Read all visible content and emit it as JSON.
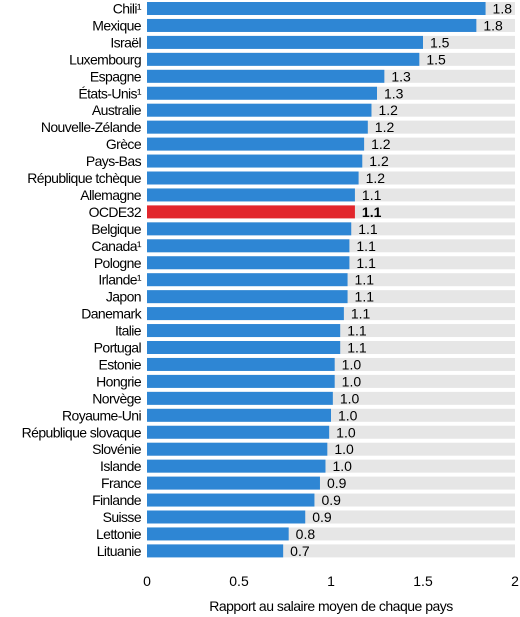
{
  "chart_data": {
    "type": "bar",
    "orientation": "horizontal",
    "categories": [
      "Chili¹",
      "Mexique",
      "Israël",
      "Luxembourg",
      "Espagne",
      "États-Unis¹",
      "Australie",
      "Nouvelle-Zélande",
      "Grèce",
      "Pays-Bas",
      "République tchèque",
      "Allemagne",
      "OCDE32",
      "Belgique",
      "Canada¹",
      "Pologne",
      "Irlande¹",
      "Japon",
      "Danemark",
      "Italie",
      "Portugal",
      "Estonie",
      "Hongrie",
      "Norvège",
      "Royaume-Uni",
      "République slovaque",
      "Slovénie",
      "Islande",
      "France",
      "Finlande",
      "Suisse",
      "Lettonie",
      "Lituanie"
    ],
    "values": [
      1.84,
      1.79,
      1.5,
      1.48,
      1.29,
      1.25,
      1.22,
      1.2,
      1.18,
      1.17,
      1.15,
      1.13,
      1.13,
      1.11,
      1.1,
      1.1,
      1.09,
      1.09,
      1.07,
      1.05,
      1.05,
      1.02,
      1.02,
      1.01,
      1.0,
      0.99,
      0.98,
      0.97,
      0.94,
      0.91,
      0.86,
      0.77,
      0.74
    ],
    "value_labels": [
      "1.8",
      "1.8",
      "1.5",
      "1.5",
      "1.3",
      "1.3",
      "1.2",
      "1.2",
      "1.2",
      "1.2",
      "1.2",
      "1.1",
      "1.1",
      "1.1",
      "1.1",
      "1.1",
      "1.1",
      "1.1",
      "1.1",
      "1.1",
      "1.1",
      "1.0",
      "1.0",
      "1.0",
      "1.0",
      "1.0",
      "1.0",
      "1.0",
      "0.9",
      "0.9",
      "0.9",
      "0.8",
      "0.7"
    ],
    "highlight": "OCDE32",
    "xlim": [
      0,
      2
    ],
    "xticks": [
      "0",
      "0.5",
      "1",
      "1.5",
      "2"
    ],
    "xlabel": "Rapport au salaire moyen de chaque pays",
    "colors": {
      "bar": "#2e86d4",
      "highlight": "#e2262c",
      "background_band": "#e6e6e6"
    },
    "grid": false
  }
}
